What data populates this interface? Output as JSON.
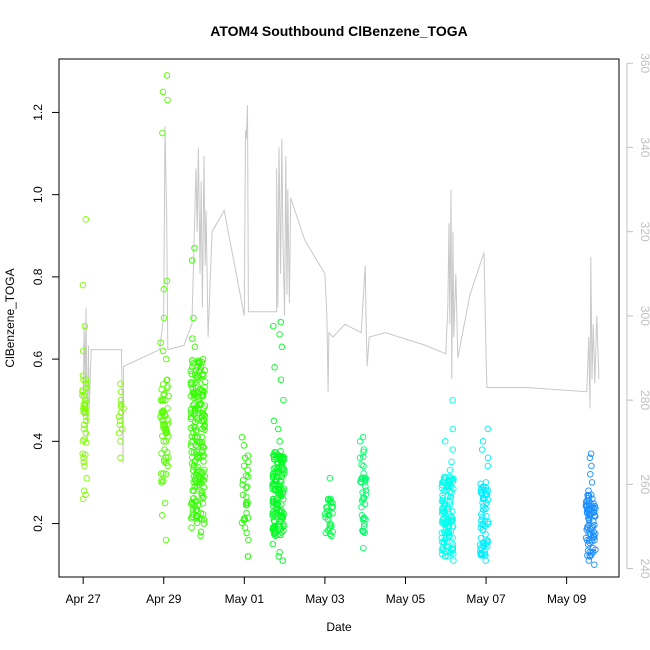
{
  "chart_data": {
    "type": "scatter",
    "title": "ATOM4 Southbound ClBenzene_TOGA",
    "xlabel": "Date",
    "ylabel": "ClBenzene_TOGA",
    "xaxis": {
      "unit": "days since Apr 27 00:00",
      "range": [
        -0.6,
        13.3
      ],
      "ticks": [
        {
          "value": 0,
          "label": "Apr 27"
        },
        {
          "value": 2,
          "label": "Apr 29"
        },
        {
          "value": 4,
          "label": "May 01"
        },
        {
          "value": 6,
          "label": "May 03"
        },
        {
          "value": 8,
          "label": "May 05"
        },
        {
          "value": 10,
          "label": "May 07"
        },
        {
          "value": 12,
          "label": "May 09"
        }
      ]
    },
    "yaxis": {
      "range": [
        0.07,
        1.33
      ],
      "ticks": [
        {
          "value": 0.2,
          "label": "0.2"
        },
        {
          "value": 0.4,
          "label": "0.4"
        },
        {
          "value": 0.6,
          "label": "0.6"
        },
        {
          "value": 0.8,
          "label": "0.8"
        },
        {
          "value": 1.0,
          "label": "1.0"
        },
        {
          "value": 1.2,
          "label": "1.2"
        }
      ]
    },
    "y2axis": {
      "description": "secondary (right) axis for grey trace",
      "range": [
        238,
        361
      ],
      "ticks": [
        {
          "value": 240,
          "label": "240"
        },
        {
          "value": 260,
          "label": "260"
        },
        {
          "value": 280,
          "label": "280"
        },
        {
          "value": 300,
          "label": "300"
        },
        {
          "value": 320,
          "label": "320"
        },
        {
          "value": 340,
          "label": "340"
        },
        {
          "value": 360,
          "label": "360"
        }
      ]
    },
    "scatter_groups": [
      {
        "color": "#7FFF00",
        "x_center": 0.03,
        "x_spread": 0.06,
        "n": 40,
        "values": [
          0.94,
          0.78,
          0.68,
          0.62,
          0.56,
          0.55,
          0.54,
          0.53,
          0.52,
          0.51,
          0.5,
          0.49,
          0.48,
          0.47,
          0.46,
          0.45,
          0.44,
          0.43,
          0.42,
          0.4,
          0.37,
          0.36,
          0.35,
          0.34,
          0.31,
          0.28,
          0.27,
          0.26
        ],
        "fill_low": 0.33,
        "fill_high": 0.55
      },
      {
        "color": "#7FFF00",
        "x_center": 0.95,
        "x_spread": 0.06,
        "n": 14,
        "values": [
          0.54,
          0.52,
          0.5,
          0.49,
          0.48,
          0.47,
          0.46,
          0.45,
          0.44,
          0.43,
          0.42,
          0.4,
          0.36
        ],
        "fill_low": 0.4,
        "fill_high": 0.52
      },
      {
        "color": "#55FF00",
        "x_center": 2.02,
        "x_spread": 0.1,
        "n": 70,
        "values": [
          1.29,
          1.25,
          1.23,
          1.15,
          0.79,
          0.77,
          0.7,
          0.64,
          0.62,
          0.6,
          0.55,
          0.53,
          0.51,
          0.5,
          0.48,
          0.47,
          0.46,
          0.45,
          0.44,
          0.43,
          0.42,
          0.4,
          0.38,
          0.36,
          0.34,
          0.32,
          0.3,
          0.25,
          0.22,
          0.16
        ],
        "fill_low": 0.3,
        "fill_high": 0.55
      },
      {
        "color": "#33FF00",
        "x_center": 2.85,
        "x_spread": 0.18,
        "n": 200,
        "values": [
          0.87,
          0.84,
          0.7,
          0.65,
          0.63,
          0.6,
          0.58,
          0.55,
          0.2,
          0.19,
          0.18,
          0.17
        ],
        "fill_low": 0.2,
        "fill_high": 0.6
      },
      {
        "color": "#22FF00",
        "x_center": 4.02,
        "x_spread": 0.08,
        "n": 30,
        "values": [
          0.41,
          0.39,
          0.36,
          0.35,
          0.33,
          0.29,
          0.27,
          0.25,
          0.21,
          0.19,
          0.16,
          0.12,
          0.12
        ],
        "fill_low": 0.15,
        "fill_high": 0.38
      },
      {
        "color": "#00FF22",
        "x_center": 4.85,
        "x_spread": 0.15,
        "n": 150,
        "values": [
          0.69,
          0.68,
          0.66,
          0.63,
          0.58,
          0.55,
          0.5,
          0.45,
          0.43,
          0.4,
          0.15,
          0.13,
          0.12,
          0.11
        ],
        "fill_low": 0.17,
        "fill_high": 0.38
      },
      {
        "color": "#00FF44",
        "x_center": 6.1,
        "x_spread": 0.1,
        "n": 30,
        "values": [
          0.31,
          0.26,
          0.25,
          0.24,
          0.23,
          0.22,
          0.21,
          0.2,
          0.19,
          0.18,
          0.17
        ],
        "fill_low": 0.17,
        "fill_high": 0.26
      },
      {
        "color": "#00FF66",
        "x_center": 6.95,
        "x_spread": 0.08,
        "n": 40,
        "values": [
          0.41,
          0.4,
          0.38,
          0.36,
          0.34,
          0.31,
          0.29,
          0.26,
          0.24,
          0.22,
          0.21,
          0.2,
          0.18,
          0.14
        ],
        "fill_low": 0.17,
        "fill_high": 0.38
      },
      {
        "color": "#00FFEE",
        "x_center": 9.05,
        "x_spread": 0.15,
        "n": 120,
        "values": [
          0.5,
          0.43,
          0.4,
          0.38,
          0.35,
          0.33,
          0.31,
          0.3,
          0.12,
          0.11
        ],
        "fill_low": 0.12,
        "fill_high": 0.32
      },
      {
        "color": "#00EEFF",
        "x_center": 9.95,
        "x_spread": 0.1,
        "n": 70,
        "values": [
          0.43,
          0.4,
          0.38,
          0.36,
          0.34,
          0.3,
          0.28,
          0.15,
          0.11
        ],
        "fill_low": 0.12,
        "fill_high": 0.3
      },
      {
        "color": "#1E90FF",
        "x_center": 12.6,
        "x_spread": 0.12,
        "n": 90,
        "values": [
          0.37,
          0.36,
          0.34,
          0.32,
          0.3,
          0.28,
          0.27,
          0.26,
          0.13,
          0.12,
          0.11,
          0.1
        ],
        "fill_low": 0.12,
        "fill_high": 0.27
      }
    ],
    "grey_trace": {
      "color": "#c8c8c8",
      "axis": "y2",
      "points": [
        [
          0.0,
          276
        ],
        [
          0.02,
          298
        ],
        [
          0.05,
          282
        ],
        [
          0.07,
          302
        ],
        [
          0.1,
          270
        ],
        [
          0.13,
          293
        ],
        [
          0.15,
          278
        ],
        [
          0.2,
          292
        ],
        [
          0.95,
          292
        ],
        [
          0.97,
          280
        ],
        [
          0.99,
          265
        ],
        [
          1.0,
          288
        ],
        [
          1.9,
          292
        ],
        [
          2.0,
          300
        ],
        [
          2.03,
          345
        ],
        [
          2.07,
          325
        ],
        [
          2.1,
          292
        ],
        [
          2.5,
          293
        ],
        [
          2.7,
          298
        ],
        [
          2.8,
          335
        ],
        [
          2.83,
          320
        ],
        [
          2.86,
          340
        ],
        [
          2.9,
          310
        ],
        [
          2.93,
          332
        ],
        [
          2.96,
          302
        ],
        [
          3.0,
          338
        ],
        [
          3.03,
          312
        ],
        [
          3.05,
          325
        ],
        [
          3.1,
          295
        ],
        [
          3.2,
          320
        ],
        [
          3.5,
          325
        ],
        [
          4.0,
          300
        ],
        [
          4.03,
          344
        ],
        [
          4.05,
          342
        ],
        [
          4.08,
          350
        ],
        [
          4.1,
          301
        ],
        [
          4.8,
          301
        ],
        [
          4.8,
          335
        ],
        [
          4.83,
          302
        ],
        [
          4.86,
          340
        ],
        [
          4.9,
          310
        ],
        [
          4.93,
          342
        ],
        [
          4.96,
          318
        ],
        [
          5.0,
          300
        ],
        [
          5.03,
          338
        ],
        [
          5.06,
          305
        ],
        [
          5.08,
          330
        ],
        [
          5.12,
          303
        ],
        [
          5.15,
          328
        ],
        [
          5.5,
          318
        ],
        [
          6.0,
          310
        ],
        [
          6.05,
          300
        ],
        [
          6.08,
          282
        ],
        [
          6.1,
          296
        ],
        [
          6.2,
          295
        ],
        [
          6.5,
          298
        ],
        [
          6.9,
          296
        ],
        [
          7.0,
          312
        ],
        [
          7.03,
          295
        ],
        [
          7.05,
          288
        ],
        [
          7.1,
          295
        ],
        [
          7.5,
          296
        ],
        [
          8.5,
          293
        ],
        [
          9.0,
          291
        ],
        [
          9.05,
          302
        ],
        [
          9.08,
          322
        ],
        [
          9.1,
          298
        ],
        [
          9.13,
          330
        ],
        [
          9.15,
          285
        ],
        [
          9.18,
          320
        ],
        [
          9.2,
          295
        ],
        [
          9.25,
          310
        ],
        [
          9.3,
          290
        ],
        [
          9.6,
          305
        ],
        [
          9.95,
          315
        ],
        [
          10.0,
          290
        ],
        [
          10.02,
          283
        ],
        [
          11.0,
          283
        ],
        [
          12.5,
          282
        ],
        [
          12.55,
          295
        ],
        [
          12.58,
          278
        ],
        [
          12.6,
          314
        ],
        [
          12.63,
          285
        ],
        [
          12.66,
          298
        ],
        [
          12.7,
          284
        ],
        [
          12.75,
          300
        ],
        [
          12.8,
          285
        ]
      ]
    }
  }
}
